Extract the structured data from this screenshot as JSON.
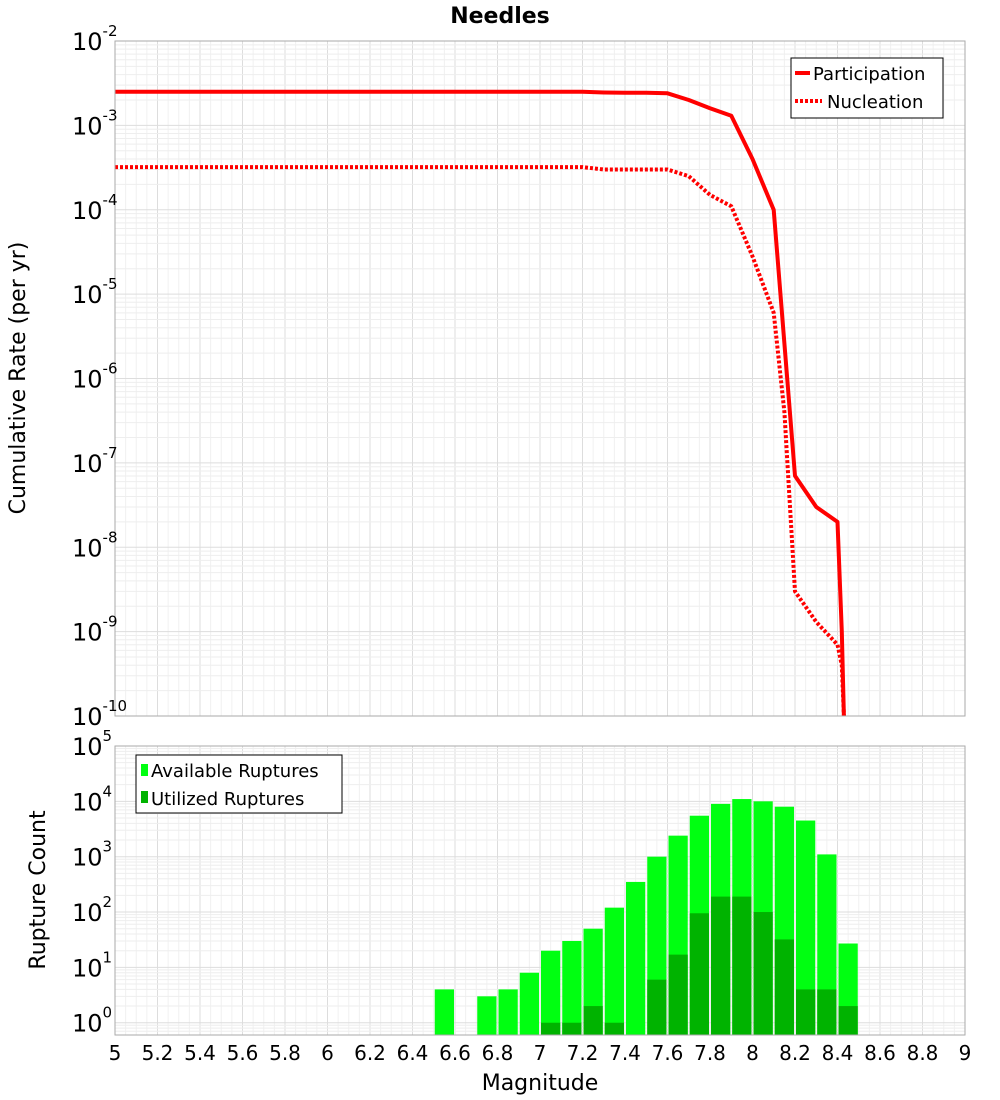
{
  "chart_data": [
    {
      "type": "line",
      "title": "Needles",
      "xlabel": "",
      "ylabel": "Cumulative Rate (per yr)",
      "xlim": [
        5,
        9
      ],
      "ylim": [
        1e-10,
        0.01
      ],
      "yscale": "log",
      "grid": true,
      "legend_position": "top-right",
      "ytick_base": "10",
      "ytick_exponents": [
        "-10",
        "-9",
        "-8",
        "-7",
        "-6",
        "-5",
        "-4",
        "-3",
        "-2"
      ],
      "series": [
        {
          "name": "Participation",
          "style": "solid",
          "color": "#ff0000",
          "x": [
            5.0,
            5.5,
            6.0,
            6.5,
            7.0,
            7.2,
            7.3,
            7.4,
            7.5,
            7.6,
            7.7,
            7.8,
            7.9,
            8.0,
            8.1,
            8.2,
            8.3,
            8.4,
            8.42,
            8.43
          ],
          "y": [
            0.0025,
            0.0025,
            0.0025,
            0.0025,
            0.0025,
            0.0025,
            0.00245,
            0.00243,
            0.00243,
            0.0024,
            0.002,
            0.0016,
            0.0013,
            0.0004,
            0.0001,
            7e-08,
            3e-08,
            2e-08,
            1e-09,
            1e-10
          ]
        },
        {
          "name": "Nucleation",
          "style": "dotted",
          "color": "#ff0000",
          "x": [
            5.0,
            5.5,
            6.0,
            6.5,
            7.0,
            7.2,
            7.3,
            7.4,
            7.5,
            7.6,
            7.7,
            7.8,
            7.9,
            8.0,
            8.1,
            8.15,
            8.2,
            8.3,
            8.4,
            8.42,
            8.43
          ],
          "y": [
            0.00032,
            0.00032,
            0.00032,
            0.00032,
            0.00032,
            0.00032,
            0.0003,
            0.0003,
            0.0003,
            0.0003,
            0.00025,
            0.00015,
            0.00011,
            2.8e-05,
            6e-06,
            4e-07,
            3e-09,
            1.3e-09,
            7e-10,
            4e-10,
            1e-10
          ]
        }
      ]
    },
    {
      "type": "bar",
      "title": "",
      "xlabel": "Magnitude",
      "ylabel": "Rupture Count",
      "xlim": [
        5,
        9
      ],
      "ylim": [
        0.6,
        100000
      ],
      "yscale": "log",
      "grid": true,
      "legend_position": "top-left",
      "bar_width": 0.1,
      "xtick_labels": [
        "5",
        "5.2",
        "5.4",
        "5.6",
        "5.8",
        "6",
        "6.2",
        "6.4",
        "6.6",
        "6.8",
        "7",
        "7.2",
        "7.4",
        "7.6",
        "7.8",
        "8",
        "8.2",
        "8.4",
        "8.6",
        "8.8",
        "9"
      ],
      "xtick_values": [
        5,
        5.2,
        5.4,
        5.6,
        5.8,
        6,
        6.2,
        6.4,
        6.6,
        6.8,
        7,
        7.2,
        7.4,
        7.6,
        7.8,
        8,
        8.2,
        8.4,
        8.6,
        8.8,
        9
      ],
      "ytick_base": "10",
      "ytick_exponents": [
        "0",
        "1",
        "2",
        "3",
        "4",
        "5"
      ],
      "series": [
        {
          "name": "Available Ruptures",
          "color": "#00ff11",
          "x": [
            6.55,
            6.75,
            6.85,
            6.95,
            7.05,
            7.15,
            7.25,
            7.35,
            7.45,
            7.55,
            7.65,
            7.75,
            7.85,
            7.95,
            8.05,
            8.15,
            8.25,
            8.35,
            8.45
          ],
          "values": [
            4,
            3,
            4,
            8,
            20,
            30,
            50,
            120,
            350,
            1000,
            2400,
            5500,
            9000,
            11000,
            10000,
            8000,
            4500,
            1100,
            27
          ]
        },
        {
          "name": "Utilized Ruptures",
          "color": "#00b300",
          "x": [
            7.05,
            7.15,
            7.25,
            7.35,
            7.55,
            7.65,
            7.75,
            7.85,
            7.95,
            8.05,
            8.15,
            8.25,
            8.35,
            8.45
          ],
          "values": [
            1,
            1,
            2,
            1,
            6,
            17,
            95,
            190,
            190,
            100,
            32,
            4,
            4,
            2
          ]
        }
      ]
    }
  ]
}
